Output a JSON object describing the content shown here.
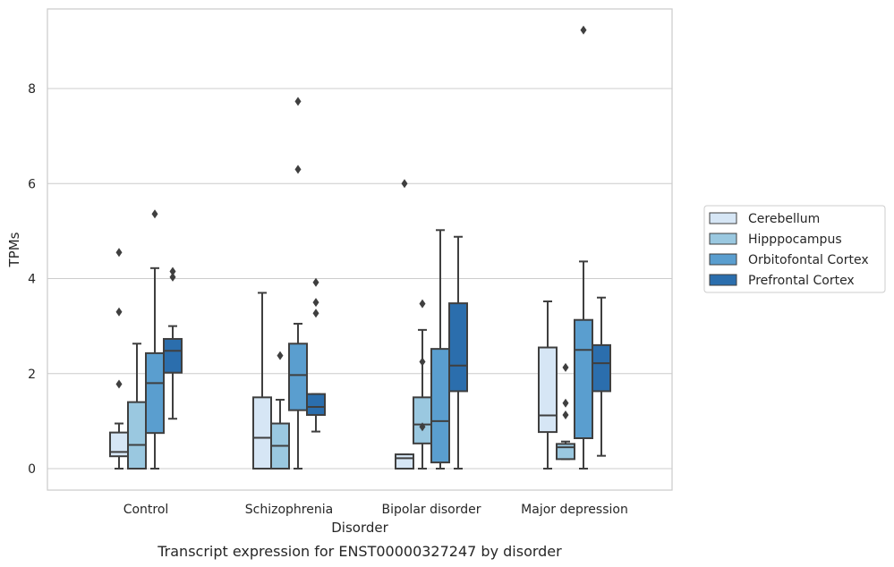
{
  "chart_data": {
    "type": "box",
    "caption": "Transcript expression for ENST00000327247 by disorder",
    "xlabel": "Disorder",
    "ylabel": "TPMs",
    "ylim": [
      -0.45,
      9.7
    ],
    "yticks": [
      0,
      2,
      4,
      6,
      8
    ],
    "grid": "horizontal",
    "legend_position": "right",
    "categories": [
      "Control",
      "Schizophrenia",
      "Bipolar disorder",
      "Major depression"
    ],
    "series": [
      {
        "name": "Cerebellum",
        "color": "#d6e6f5",
        "boxes": [
          {
            "whislo": 0.0,
            "q1": 0.26,
            "med": 0.35,
            "q3": 0.76,
            "whishi": 0.95,
            "fliers": [
              1.78,
              3.3,
              4.55
            ]
          },
          {
            "whislo": 0.0,
            "q1": 0.0,
            "med": 0.65,
            "q3": 1.5,
            "whishi": 3.7,
            "fliers": []
          },
          {
            "whislo": 0.0,
            "q1": 0.0,
            "med": 0.22,
            "q3": 0.3,
            "whishi": 0.3,
            "fliers": [
              6.0
            ]
          },
          {
            "whislo": 0.0,
            "q1": 0.77,
            "med": 1.12,
            "q3": 2.55,
            "whishi": 3.52,
            "fliers": []
          }
        ]
      },
      {
        "name": "Hipppocampus",
        "color": "#9ac8e0",
        "boxes": [
          {
            "whislo": 0.0,
            "q1": 0.0,
            "med": 0.5,
            "q3": 1.4,
            "whishi": 2.63,
            "fliers": []
          },
          {
            "whislo": 0.0,
            "q1": 0.0,
            "med": 0.48,
            "q3": 0.95,
            "whishi": 1.45,
            "fliers": [
              2.38
            ]
          },
          {
            "whislo": 0.0,
            "q1": 0.53,
            "med": 0.93,
            "q3": 1.5,
            "whishi": 2.92,
            "fliers": [
              0.88,
              2.25,
              3.47
            ]
          },
          {
            "whislo": 0.2,
            "q1": 0.2,
            "med": 0.45,
            "q3": 0.52,
            "whishi": 0.57,
            "fliers": [
              1.13,
              1.38,
              2.13
            ]
          }
        ]
      },
      {
        "name": "Orbitofontal Cortex",
        "color": "#5a9ecf",
        "boxes": [
          {
            "whislo": 0.0,
            "q1": 0.75,
            "med": 1.8,
            "q3": 2.43,
            "whishi": 4.22,
            "fliers": [
              5.36
            ]
          },
          {
            "whislo": 0.0,
            "q1": 1.23,
            "med": 1.97,
            "q3": 2.63,
            "whishi": 3.05,
            "fliers": [
              6.3,
              7.73
            ]
          },
          {
            "whislo": 0.0,
            "q1": 0.13,
            "med": 1.0,
            "q3": 2.52,
            "whishi": 5.02,
            "fliers": []
          },
          {
            "whislo": 0.0,
            "q1": 0.64,
            "med": 2.5,
            "q3": 3.13,
            "whishi": 4.36,
            "fliers": [
              9.23
            ]
          }
        ]
      },
      {
        "name": "Prefrontal Cortex",
        "color": "#2b6ead",
        "boxes": [
          {
            "whislo": 1.05,
            "q1": 2.02,
            "med": 2.48,
            "q3": 2.73,
            "whishi": 3.0,
            "fliers": [
              4.03,
              4.15
            ]
          },
          {
            "whislo": 0.78,
            "q1": 1.13,
            "med": 1.3,
            "q3": 1.57,
            "whishi": 1.57,
            "fliers": [
              3.27,
              3.5,
              3.92
            ]
          },
          {
            "whislo": 0.0,
            "q1": 1.63,
            "med": 2.17,
            "q3": 3.48,
            "whishi": 4.88,
            "fliers": []
          },
          {
            "whislo": 0.27,
            "q1": 1.63,
            "med": 2.22,
            "q3": 2.6,
            "whishi": 3.6,
            "fliers": []
          }
        ]
      }
    ]
  }
}
